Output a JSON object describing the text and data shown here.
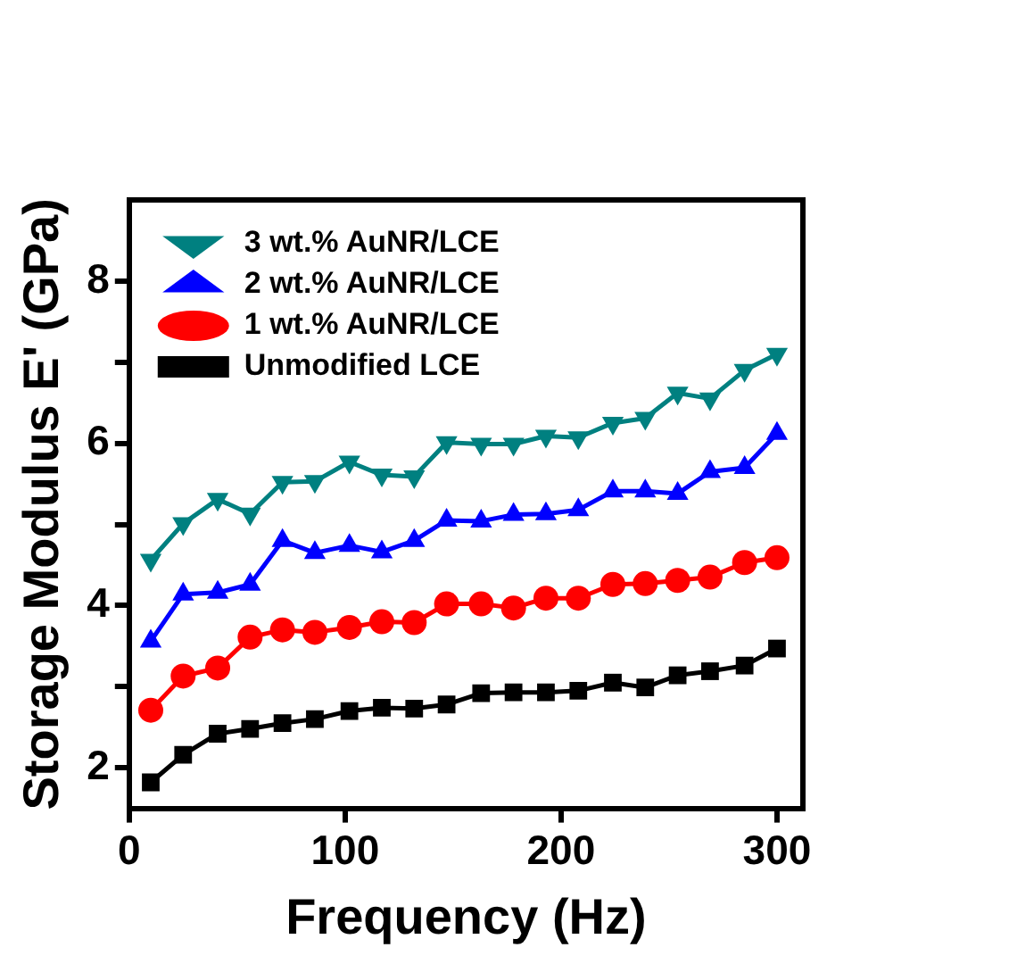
{
  "chart_data": {
    "type": "line",
    "xlabel": "Frequency (Hz)",
    "ylabel": "Storage Modulus E' (GPa)",
    "x": [
      10,
      25,
      41,
      56,
      71,
      86,
      102,
      117,
      132,
      147,
      163,
      178,
      193,
      208,
      224,
      239,
      254,
      269,
      285,
      300
    ],
    "series": [
      {
        "name": "3 wt.% AuNR/LCE",
        "color": "#008080",
        "marker": "triangle-down",
        "values": [
          4.56,
          5.01,
          5.31,
          5.13,
          5.52,
          5.53,
          5.77,
          5.61,
          5.59,
          6.01,
          5.99,
          5.99,
          6.09,
          6.07,
          6.25,
          6.31,
          6.62,
          6.55,
          6.9,
          7.1
        ]
      },
      {
        "name": "2 wt.% AuNR/LCE",
        "color": "#0000ff",
        "marker": "triangle",
        "values": [
          3.56,
          4.14,
          4.16,
          4.26,
          4.8,
          4.65,
          4.74,
          4.66,
          4.8,
          5.05,
          5.04,
          5.12,
          5.13,
          5.18,
          5.41,
          5.41,
          5.38,
          5.65,
          5.7,
          6.12
        ]
      },
      {
        "name": "1 wt.% AuNR/LCE",
        "color": "#ff0000",
        "marker": "circle",
        "values": [
          2.71,
          3.13,
          3.23,
          3.61,
          3.7,
          3.67,
          3.73,
          3.8,
          3.79,
          4.02,
          4.02,
          3.97,
          4.09,
          4.09,
          4.26,
          4.27,
          4.31,
          4.35,
          4.53,
          4.59
        ]
      },
      {
        "name": "Unmodified LCE",
        "color": "#000000",
        "marker": "square",
        "values": [
          1.82,
          2.16,
          2.42,
          2.48,
          2.55,
          2.6,
          2.7,
          2.74,
          2.73,
          2.78,
          2.92,
          2.93,
          2.93,
          2.95,
          3.05,
          2.99,
          3.14,
          3.19,
          3.26,
          3.47
        ]
      }
    ],
    "xlim": [
      0,
      312
    ],
    "xticks": [
      0,
      100,
      200,
      300
    ],
    "ylim": [
      1.5,
      9
    ],
    "yticks": [
      2,
      {
        "value": 3,
        "label": null
      },
      4,
      {
        "value": 5,
        "label": null
      },
      6,
      {
        "value": 7,
        "label": null
      },
      8
    ],
    "grid": false,
    "legend": "top left",
    "line_style": "solid"
  }
}
